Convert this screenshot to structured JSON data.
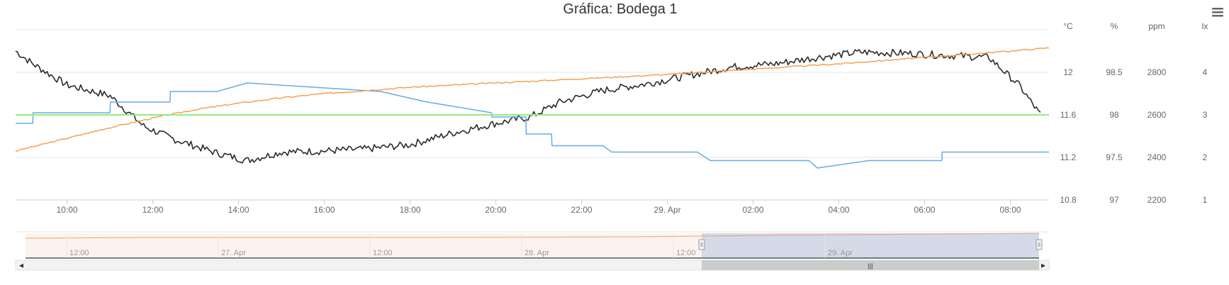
{
  "chart_data": {
    "type": "line",
    "title": "Gráfica: Bodega 1",
    "x_ticks": [
      "10:00",
      "12:00",
      "14:00",
      "16:00",
      "18:00",
      "20:00",
      "22:00",
      "29. Apr",
      "02:00",
      "04:00",
      "06:00",
      "08:00"
    ],
    "y_axes": [
      {
        "unit": "°C",
        "ticks": [
          "12",
          "11.6",
          "11.2",
          "10.8"
        ]
      },
      {
        "unit": "%",
        "ticks": [
          "98.5",
          "98",
          "97.5",
          "97"
        ]
      },
      {
        "unit": "ppm",
        "ticks": [
          "2800",
          "2600",
          "2400",
          "2200"
        ]
      },
      {
        "unit": "lx",
        "ticks": [
          "4",
          "3",
          "2",
          "1"
        ]
      }
    ],
    "series": [
      {
        "color": "#2b2b2b",
        "axis": "°C",
        "x": [
          8.8,
          9.2,
          10.0,
          11.0,
          11.8,
          12.5,
          13.5,
          14.2,
          15.0,
          16.0,
          17.0,
          18.0,
          19.0,
          20.0,
          20.8,
          21.5,
          22.5,
          23.5,
          24.5,
          25.5,
          26.5,
          27.5,
          28.5,
          29.5,
          30.5,
          31.5,
          32.2,
          32.7
        ],
        "y": [
          12.2,
          12.08,
          11.88,
          11.78,
          11.49,
          11.37,
          11.24,
          11.17,
          11.25,
          11.26,
          11.28,
          11.32,
          11.43,
          11.52,
          11.58,
          11.72,
          11.83,
          11.89,
          11.97,
          12.05,
          12.08,
          12.14,
          12.19,
          12.18,
          12.16,
          12.14,
          11.88,
          11.6
        ]
      },
      {
        "color": "#6aaae4",
        "axis": "°C",
        "x": [
          8.8,
          9.2,
          9.21,
          11.0,
          11.01,
          12.4,
          12.41,
          13.5,
          14.2,
          17.3,
          17.31,
          18.4,
          18.41,
          19.9,
          19.91,
          20.7,
          20.71,
          21.3,
          21.31,
          22.5,
          22.7,
          24.7,
          25.0,
          27.3,
          27.5,
          28.7,
          28.9,
          30.4,
          30.41,
          32.9
        ],
        "y": [
          11.52,
          11.52,
          11.62,
          11.62,
          11.72,
          11.72,
          11.82,
          11.82,
          11.9,
          11.82,
          11.82,
          11.72,
          11.72,
          11.62,
          11.58,
          11.58,
          11.42,
          11.42,
          11.31,
          11.31,
          11.25,
          11.25,
          11.17,
          11.17,
          11.1,
          11.17,
          11.17,
          11.17,
          11.25,
          11.25
        ]
      },
      {
        "color": "#f5a055",
        "axis": "°C",
        "x": [
          8.8,
          10.0,
          11.0,
          12.0,
          13.0,
          14.0,
          15.0,
          16.0,
          17.0,
          18.0,
          19.0,
          20.0,
          22.0,
          24.0,
          26.0,
          28.0,
          30.0,
          32.0,
          32.9
        ],
        "y": [
          11.26,
          11.38,
          11.48,
          11.57,
          11.65,
          11.71,
          11.76,
          11.8,
          11.83,
          11.86,
          11.88,
          11.9,
          11.94,
          11.98,
          12.03,
          12.08,
          12.14,
          12.2,
          12.23
        ]
      },
      {
        "color": "#90ed7d",
        "axis": "°C",
        "x": [
          8.8,
          32.9
        ],
        "y": [
          11.6,
          11.6
        ]
      }
    ],
    "navigator": {
      "labels": [
        "12:00",
        "27. Apr",
        "12:00",
        "28. Apr",
        "12:00",
        "29. Apr"
      ]
    }
  },
  "menu": {
    "icon": "hamburger-menu-icon"
  },
  "scrollbar": {
    "left_arrow": "◂",
    "right_arrow": "▸",
    "grip": "|||"
  }
}
